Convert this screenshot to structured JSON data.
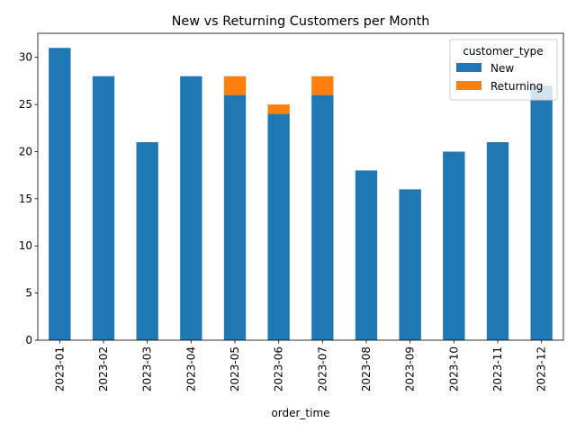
{
  "chart_data": {
    "type": "bar",
    "stacked": true,
    "title": "New vs Returning Customers per Month",
    "xlabel": "order_time",
    "ylabel": "",
    "ylim": [
      0,
      32.55
    ],
    "yticks": [
      0,
      5,
      10,
      15,
      20,
      25,
      30
    ],
    "categories": [
      "2023-01",
      "2023-02",
      "2023-03",
      "2023-04",
      "2023-05",
      "2023-06",
      "2023-07",
      "2023-08",
      "2023-09",
      "2023-10",
      "2023-11",
      "2023-12"
    ],
    "series": [
      {
        "name": "New",
        "color": "#1f77b4",
        "values": [
          31,
          28,
          21,
          28,
          26,
          24,
          26,
          18,
          16,
          20,
          21,
          27
        ]
      },
      {
        "name": "Returning",
        "color": "#ff7f0e",
        "values": [
          0,
          0,
          0,
          0,
          2,
          1,
          2,
          0,
          0,
          0,
          0,
          0
        ]
      }
    ],
    "legend": {
      "title": "customer_type",
      "placement": "top-right"
    },
    "grid": false
  }
}
